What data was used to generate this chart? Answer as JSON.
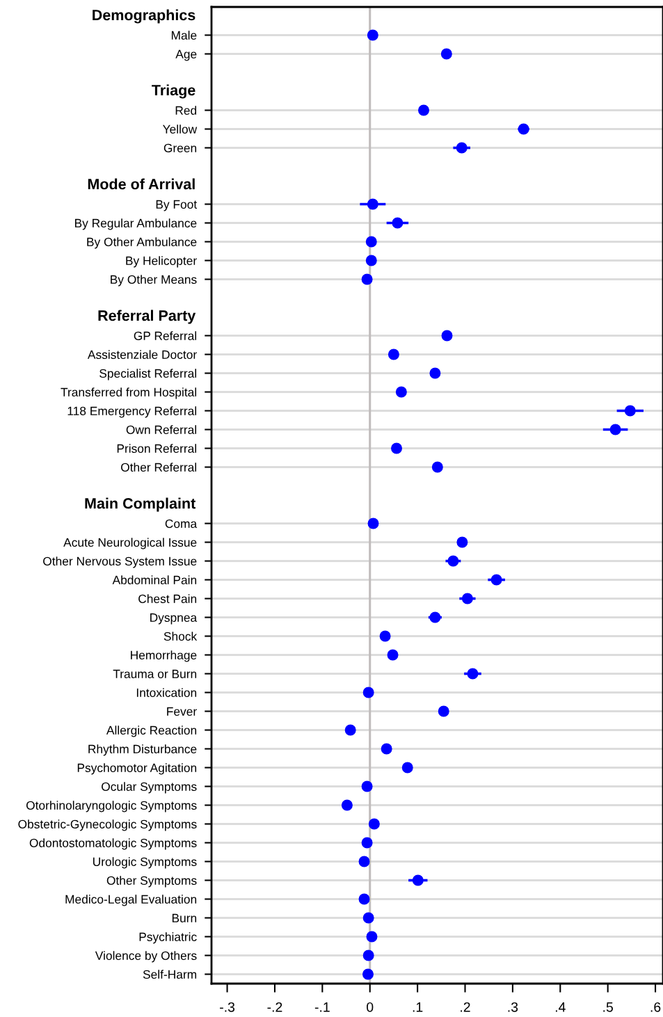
{
  "chart_data": {
    "type": "scatter",
    "orientation": "horizontal",
    "categories": [
      "Demographics",
      "Male",
      "Age",
      null,
      "Triage",
      "Red",
      "Yellow",
      "Green",
      null,
      "Mode of Arrival",
      "By Foot",
      "By Regular Ambulance",
      "By Other Ambulance",
      "By Helicopter",
      "By Other Means",
      null,
      "Referral Party",
      "GP Referral",
      "Assistenziale Doctor",
      "Specialist Referral",
      "Transferred from Hospital",
      "118 Emergency Referral",
      "Own Referral",
      "Prison Referral",
      "Other Referral",
      null,
      "Main Complaint",
      "Coma",
      "Acute Neurological Issue",
      "Other Nervous System Issue",
      "Abdominal Pain",
      "Chest Pain",
      "Dyspnea",
      "Shock",
      "Hemorrhage",
      "Trauma or Burn",
      "Intoxication",
      "Fever",
      "Allergic Reaction",
      "Rhythm Disturbance",
      "Psychomotor Agitation",
      "Ocular Symptoms",
      "Otorhinolaryngologic Symptoms",
      "Obstetric-Gynecologic Symptoms",
      "Odontostomatologic Symptoms",
      "Urologic Symptoms",
      "Other Symptoms",
      "Medico-Legal Evaluation",
      "Burn",
      "Psychiatric",
      "Violence by Others",
      "Self-Harm"
    ],
    "series": [
      {
        "color": "#0000ff",
        "values": [
          null,
          0.006,
          0.161,
          null,
          null,
          0.113,
          0.323,
          0.193,
          null,
          null,
          0.006,
          0.058,
          0.003,
          0.003,
          -0.006,
          null,
          null,
          0.162,
          0.05,
          0.137,
          0.066,
          0.547,
          0.516,
          0.056,
          0.142,
          null,
          null,
          0.007,
          0.194,
          0.175,
          0.266,
          0.205,
          0.137,
          0.032,
          0.048,
          0.216,
          -0.003,
          0.155,
          -0.041,
          0.035,
          0.079,
          -0.006,
          -0.048,
          0.009,
          -0.006,
          -0.012,
          0.101,
          -0.012,
          -0.003,
          0.004,
          -0.003,
          -0.004
        ],
        "errors": [
          null,
          null,
          null,
          null,
          null,
          null,
          0.012,
          0.018,
          null,
          null,
          0.027,
          0.023,
          null,
          null,
          null,
          null,
          null,
          null,
          null,
          null,
          null,
          0.028,
          0.026,
          null,
          null,
          null,
          null,
          null,
          null,
          0.016,
          0.018,
          0.017,
          0.014,
          null,
          null,
          0.018,
          null,
          null,
          null,
          0.008,
          null,
          null,
          null,
          null,
          null,
          null,
          0.02,
          null,
          null,
          null,
          null,
          null
        ]
      }
    ],
    "xlim": [
      -0.333,
      0.616
    ],
    "xticks": [
      {
        "value": -0.3,
        "label": "-.3"
      },
      {
        "value": -0.2,
        "label": "-.2"
      },
      {
        "value": -0.1,
        "label": "-.1"
      },
      0,
      {
        "value": 0.1,
        "label": ".1"
      },
      {
        "value": 0.2,
        "label": ".2"
      },
      {
        "value": 0.3,
        "label": ".3"
      },
      {
        "value": 0.4,
        "label": ".4"
      },
      {
        "value": 0.5,
        "label": ".5"
      },
      {
        "value": 0.6,
        "label": ".6"
      }
    ],
    "ref_lines": [
      {
        "axis": "x",
        "value": 0,
        "color": "#c0bcbc"
      }
    ],
    "grid": "y",
    "marker": "circle"
  }
}
